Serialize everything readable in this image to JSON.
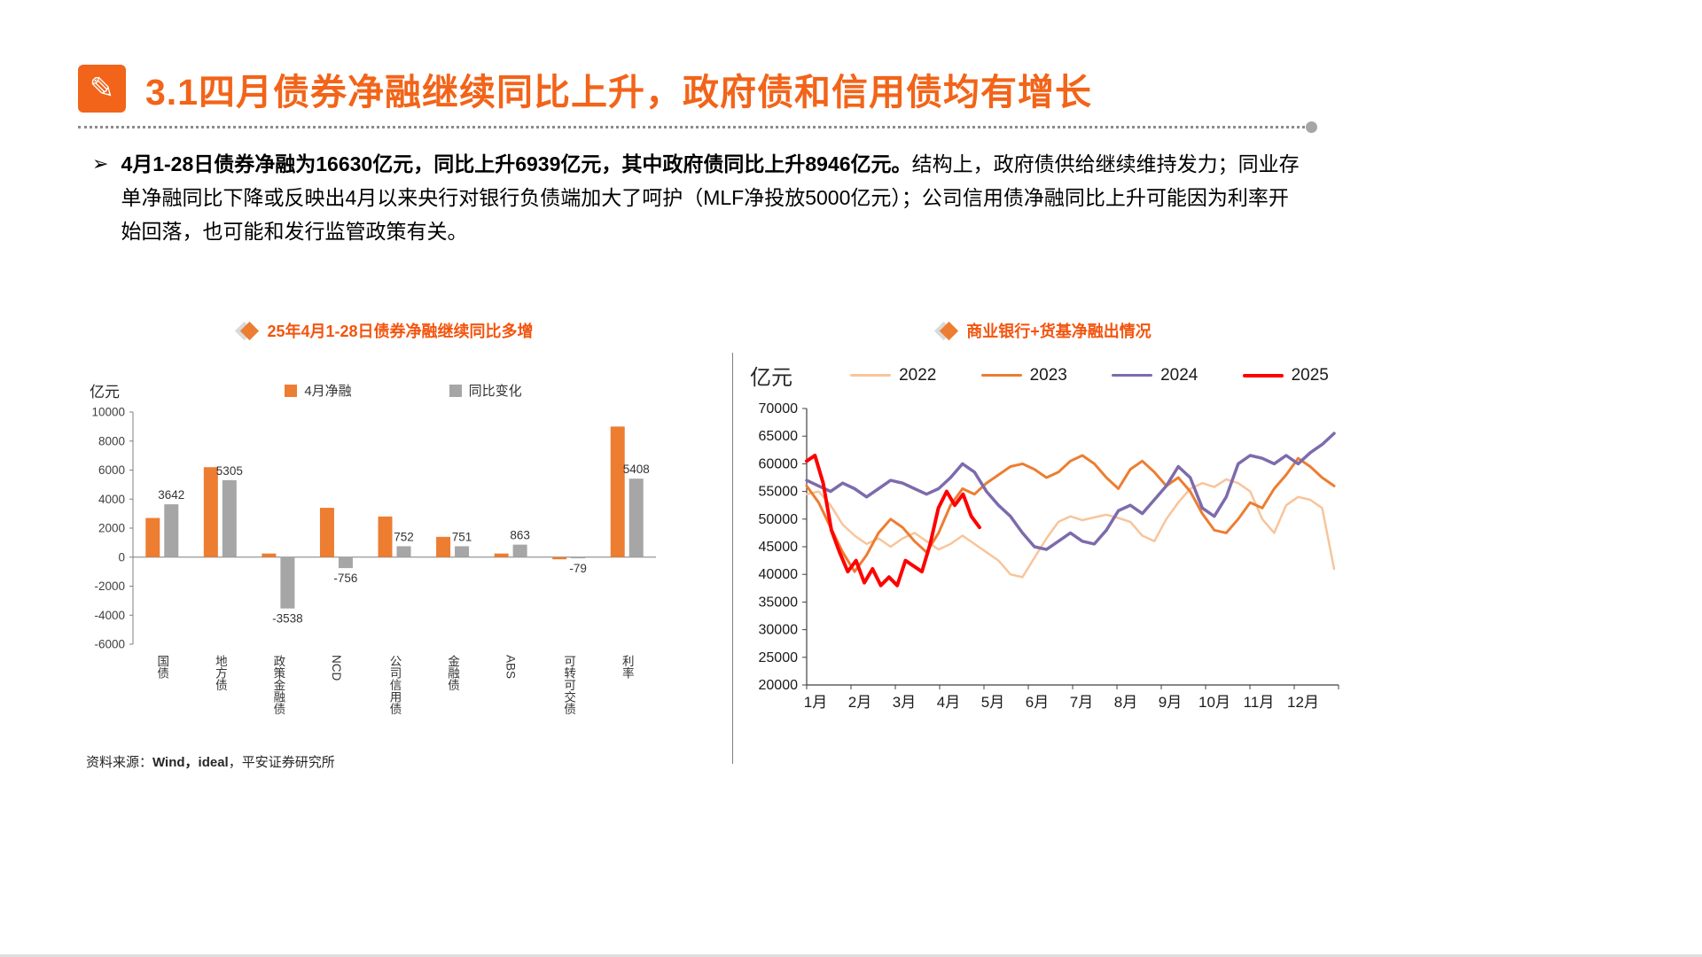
{
  "accent_color": "#F26419",
  "header": {
    "title": "3.1四月债券净融继续同比上升，政府债和信用债均有增长",
    "icon": "pencil-icon"
  },
  "bullet": {
    "marker": "➢",
    "bold_text": "4月1-28日债券净融为16630亿元，同比上升6939亿元，其中政府债同比上升8946亿元。",
    "regular_text": "结构上，政府债供给继续维持发力；同业存单净融同比下降或反映出4月以来央行对银行负债端加大了呵护（MLF净投放5000亿元）；公司信用债净融同比上升可能因为利率开始回落，也可能和发行监管政策有关。"
  },
  "left_chart": {
    "title": "25年4月1-28日债券净融继续同比多增",
    "unit_label": "亿元"
  },
  "right_chart": {
    "title": "商业银行+货基净融出情况",
    "unit_label": "亿元"
  },
  "footer": {
    "source_label": "资料来源：",
    "source_bold": "Wind，ideal",
    "source_rest": "，平安证券研究所"
  },
  "chart_data": [
    {
      "type": "bar",
      "title": "25年4月1-28日债券净融继续同比多增",
      "ylabel": "亿元",
      "ylim": [
        -6000,
        10000
      ],
      "ytick_step": 2000,
      "grid": false,
      "legend_position": "top",
      "categories": [
        "国债",
        "地方债",
        "政策金融债",
        "NCD",
        "公司信用债",
        "金融债",
        "ABS",
        "可转可交债",
        "利率"
      ],
      "series": [
        {
          "name": "4月净融",
          "color": "#ED7D31",
          "values": [
            2700,
            6200,
            250,
            3400,
            2800,
            1400,
            250,
            -150,
            9000
          ]
        },
        {
          "name": "同比变化",
          "color": "#A6A6A6",
          "values": [
            3642,
            5305,
            -3538,
            -756,
            752,
            751,
            863,
            -79,
            5408
          ],
          "labeled": true
        }
      ]
    },
    {
      "type": "line",
      "title": "商业银行+货基净融出情况",
      "ylabel": "亿元",
      "ylim": [
        20000,
        70000
      ],
      "ytick_step": 5000,
      "grid": false,
      "legend_position": "top",
      "x_labels": [
        "1月",
        "2月",
        "3月",
        "4月",
        "5月",
        "6月",
        "7月",
        "8月",
        "9月",
        "10月",
        "11月",
        "12月"
      ],
      "x_range": [
        1,
        13
      ],
      "series": [
        {
          "name": "2022",
          "color": "#F7C59B",
          "stroke_width": 2.5,
          "x_start": 1,
          "x_end": 12.9,
          "values": [
            54500,
            55000,
            52500,
            49000,
            47000,
            45500,
            46500,
            45000,
            46500,
            47500,
            46000,
            44500,
            45500,
            47000,
            45500,
            44000,
            42500,
            40000,
            39500,
            43000,
            46500,
            49500,
            50500,
            49800,
            50300,
            50800,
            50200,
            49500,
            47000,
            46000,
            50000,
            53000,
            55500,
            56500,
            55800,
            57200,
            56500,
            55000,
            50000,
            47500,
            52500,
            54000,
            53500,
            52000,
            41000
          ]
        },
        {
          "name": "2023",
          "color": "#ED7D31",
          "stroke_width": 3,
          "x_start": 1,
          "x_end": 12.9,
          "values": [
            56000,
            53000,
            48500,
            44000,
            40500,
            43500,
            47500,
            50000,
            48500,
            46000,
            44000,
            47500,
            52500,
            55500,
            54500,
            56500,
            58000,
            59500,
            60000,
            59000,
            57500,
            58500,
            60500,
            61500,
            60000,
            57500,
            55500,
            59000,
            60500,
            58500,
            56000,
            57500,
            55000,
            51000,
            48000,
            47500,
            50000,
            53000,
            52000,
            55500,
            58000,
            61000,
            59500,
            57500,
            56000
          ]
        },
        {
          "name": "2024",
          "color": "#7D6BAC",
          "stroke_width": 3.5,
          "x_start": 1,
          "x_end": 12.9,
          "values": [
            57000,
            56000,
            55000,
            56500,
            55500,
            54000,
            55500,
            57000,
            56500,
            55500,
            54500,
            55500,
            57500,
            60000,
            58500,
            55000,
            52500,
            50500,
            47500,
            45000,
            44500,
            46000,
            47500,
            46000,
            45500,
            48000,
            51500,
            52500,
            51000,
            53500,
            56000,
            59500,
            57500,
            52000,
            50500,
            54000,
            60000,
            61500,
            61000,
            60000,
            61500,
            60000,
            62000,
            63500,
            65500
          ]
        },
        {
          "name": "2025",
          "color": "#FF0000",
          "stroke_width": 4,
          "x_start": 1,
          "x_end": 4.9,
          "values": [
            60500,
            61500,
            56500,
            48000,
            44000,
            40500,
            42500,
            38500,
            41000,
            38000,
            39500,
            38000,
            42500,
            41500,
            40500,
            45500,
            52000,
            55000,
            52500,
            54500,
            50500,
            48500
          ]
        }
      ]
    }
  ]
}
